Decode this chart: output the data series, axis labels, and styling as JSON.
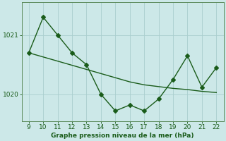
{
  "x": [
    9,
    10,
    11,
    12,
    13,
    14,
    15,
    16,
    17,
    18,
    19,
    20,
    21,
    22
  ],
  "y_zigzag": [
    1020.7,
    1021.3,
    1021.0,
    1020.7,
    1020.5,
    1020.0,
    1019.72,
    1019.82,
    1019.72,
    1019.92,
    1020.25,
    1020.65,
    1020.12,
    1020.45
  ],
  "y_smooth": [
    1020.7,
    1020.63,
    1020.56,
    1020.49,
    1020.42,
    1020.35,
    1020.28,
    1020.21,
    1020.16,
    1020.13,
    1020.1,
    1020.08,
    1020.05,
    1020.03
  ],
  "xlim": [
    8.5,
    22.5
  ],
  "ylim": [
    1019.55,
    1021.55
  ],
  "yticks": [
    1020,
    1021
  ],
  "xticks": [
    9,
    10,
    11,
    12,
    13,
    14,
    15,
    16,
    17,
    18,
    19,
    20,
    21,
    22
  ],
  "line_color": "#1a5c1a",
  "bg_color": "#cce8e8",
  "grid_color": "#aacece",
  "xlabel": "Graphe pression niveau de la mer (hPa)",
  "xlabel_color": "#1a5c1a",
  "tick_color": "#1a5c1a",
  "spine_color": "#5a8a5a",
  "marker": "D",
  "markersize": 3.0,
  "linewidth": 1.0
}
